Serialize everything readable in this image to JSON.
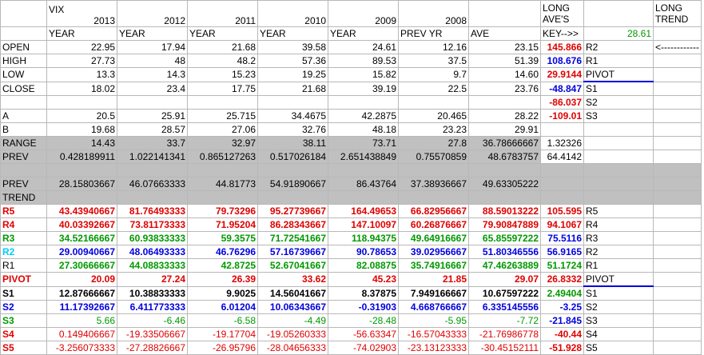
{
  "header": {
    "vix": "VIX",
    "years": [
      "2013",
      "2012",
      "2011",
      "2010",
      "2009",
      "2008"
    ],
    "long_aves_l1": "LONG",
    "long_aves_l2": "AVE'S",
    "long_trend_l1": "LONG",
    "long_trend_l2": "TREND"
  },
  "subheader": [
    "YEAR",
    "YEAR",
    "YEAR",
    "YEAR",
    "YEAR",
    "PREV YR",
    "AVE"
  ],
  "key_label": "KEY-->>",
  "key_value": "28.61",
  "arrow": "<------------",
  "rows": {
    "open": {
      "label": "OPEN",
      "v": [
        "22.95",
        "17.94",
        "21.68",
        "39.58",
        "24.61",
        "12.16",
        "23.15"
      ],
      "k": "145.866",
      "kl": "R2"
    },
    "high": {
      "label": "HIGH",
      "v": [
        "27.73",
        "48",
        "48.2",
        "57.36",
        "89.53",
        "37.5",
        "51.39"
      ],
      "k": "108.676",
      "kl": "R1"
    },
    "low": {
      "label": "LOW",
      "v": [
        "13.3",
        "14.3",
        "15.23",
        "19.25",
        "15.82",
        "9.7",
        "14.60"
      ],
      "k": "29.9144",
      "kl": "PIVOT"
    },
    "close": {
      "label": "CLOSE",
      "v": [
        "18.02",
        "23.4",
        "17.75",
        "21.68",
        "39.19",
        "22.5",
        "23.76"
      ],
      "k": "-48.847",
      "kl": "S1"
    },
    "blank1": {
      "k": "-86.037",
      "kl": "S2"
    },
    "a": {
      "label": "A",
      "v": [
        "20.5",
        "25.91",
        "25.715",
        "34.4675",
        "42.2875",
        "20.465",
        "28.22"
      ],
      "k": "-109.01",
      "kl": "S3"
    },
    "b": {
      "label": "B",
      "v": [
        "19.68",
        "28.57",
        "27.06",
        "32.76",
        "48.18",
        "23.23",
        "29.91"
      ]
    },
    "range": {
      "label": "RANGE",
      "v": [
        "14.43",
        "33.7",
        "32.97",
        "38.11",
        "73.71",
        "27.8",
        "36.78666667"
      ],
      "k": "1.32326"
    },
    "prev": {
      "label": "PREV",
      "v": [
        "0.428189911",
        "1.022141341",
        "0.865127263",
        "0.517026184",
        "2.651438849",
        "0.75570859",
        "48.6783757"
      ],
      "k": "64.4142"
    },
    "prev2": {
      "label": "PREV",
      "v": [
        "28.15803667",
        "46.07663333",
        "44.81773",
        "54.91890667",
        "86.43764",
        "37.38936667",
        "49.63305222"
      ]
    },
    "trend": {
      "label": "TREND"
    },
    "r5": {
      "label": "R5",
      "v": [
        "43.43940667",
        "81.76493333",
        "79.73296",
        "95.27739667",
        "164.49653",
        "66.82956667",
        "88.59013222"
      ],
      "k": "105.595",
      "kl": "R5"
    },
    "r4": {
      "label": "R4",
      "v": [
        "40.03392667",
        "73.81173333",
        "71.95204",
        "86.28343667",
        "147.10097",
        "60.26876667",
        "79.90847889"
      ],
      "k": "94.1067",
      "kl": "R4"
    },
    "r3": {
      "label": "R3",
      "v": [
        "34.52166667",
        "60.93833333",
        "59.3575",
        "71.72541667",
        "118.94375",
        "49.64916667",
        "65.85597222"
      ],
      "k": "75.5116",
      "kl": "R3"
    },
    "r2": {
      "label": "R2",
      "v": [
        "29.00940667",
        "48.06493333",
        "46.76296",
        "57.16739667",
        "90.78653",
        "39.02956667",
        "51.80346556"
      ],
      "k": "56.9165",
      "kl": "R2"
    },
    "r1": {
      "label": "R1",
      "v": [
        "27.30666667",
        "44.08833333",
        "42.8725",
        "52.67041667",
        "82.08875",
        "35.74916667",
        "47.46263889"
      ],
      "k": "51.1724",
      "kl": "R1"
    },
    "pivot": {
      "label": "PIVOT",
      "v": [
        "20.09",
        "27.24",
        "26.39",
        "33.62",
        "45.23",
        "21.85",
        "29.07"
      ],
      "k": "26.8332",
      "kl": "PIVOT"
    },
    "s1": {
      "label": "S1",
      "v": [
        "12.87666667",
        "10.38833333",
        "9.9025",
        "14.56041667",
        "8.37875",
        "7.949166667",
        "10.67597222"
      ],
      "k": "2.49404",
      "kl": "S1"
    },
    "s2": {
      "label": "S2",
      "v": [
        "11.17392667",
        "6.411773333",
        "6.01204",
        "10.06343667",
        "-0.31903",
        "4.668766667",
        "6.335145556"
      ],
      "k": "-3.25",
      "kl": "S2"
    },
    "s3": {
      "label": "S3",
      "v": [
        "5.66",
        "-6.46",
        "-6.58",
        "-4.49",
        "-28.48",
        "-5.95",
        "-7.72"
      ],
      "k": "-21.845",
      "kl": "S3"
    },
    "s4": {
      "label": "S4",
      "v": [
        "0.149406667",
        "-19.33506667",
        "-19.17704",
        "-19.05260333",
        "-56.63347",
        "-16.57043333",
        "-21.76986778"
      ],
      "k": "-40.44",
      "kl": "S4"
    },
    "s5": {
      "label": "S5",
      "v": [
        "-3.256073333",
        "-27.28826667",
        "-26.95796",
        "-28.04656333",
        "-74.02903",
        "-23.13123333",
        "-30.45152111"
      ],
      "k": "-51.928",
      "kl": "S5"
    }
  },
  "colors": {
    "red": "#e00000",
    "blue": "#0000e0",
    "green": "#009900",
    "cyan": "#00ccff",
    "gray": "#c0c0c0"
  }
}
